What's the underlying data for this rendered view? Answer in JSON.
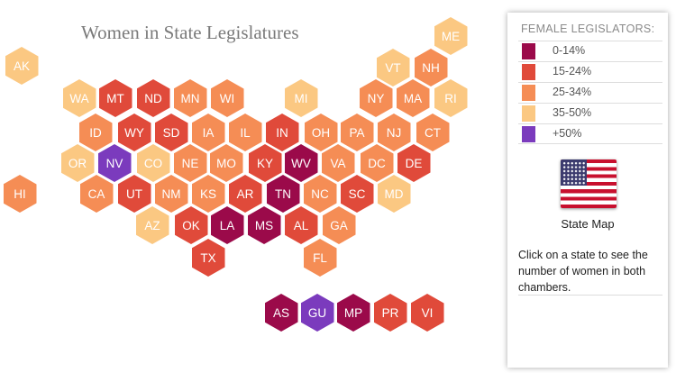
{
  "title": "Women in State Legislatures",
  "legend": {
    "title": "FEMALE LEGISLATORS:",
    "items": [
      {
        "label": "0-14%",
        "color": "#9b0a4a"
      },
      {
        "label": "15-24%",
        "color": "#e04a3a"
      },
      {
        "label": "25-34%",
        "color": "#f58d55"
      },
      {
        "label": "35-50%",
        "color": "#fbc882"
      },
      {
        "label": "+50%",
        "color": "#7b3bbd"
      }
    ]
  },
  "flag_icon": "us-flag-icon",
  "state_map_label": "State Map",
  "instructions": "Click on a state to see the number of women in both chambers.",
  "states": [
    {
      "abbr": "AK",
      "category": "35-50%"
    },
    {
      "abbr": "ME",
      "category": "35-50%"
    },
    {
      "abbr": "VT",
      "category": "35-50%"
    },
    {
      "abbr": "NH",
      "category": "25-34%"
    },
    {
      "abbr": "WA",
      "category": "35-50%"
    },
    {
      "abbr": "MT",
      "category": "15-24%"
    },
    {
      "abbr": "ND",
      "category": "15-24%"
    },
    {
      "abbr": "MN",
      "category": "25-34%"
    },
    {
      "abbr": "WI",
      "category": "25-34%"
    },
    {
      "abbr": "MI",
      "category": "35-50%"
    },
    {
      "abbr": "NY",
      "category": "25-34%"
    },
    {
      "abbr": "MA",
      "category": "25-34%"
    },
    {
      "abbr": "RI",
      "category": "35-50%"
    },
    {
      "abbr": "ID",
      "category": "25-34%"
    },
    {
      "abbr": "WY",
      "category": "15-24%"
    },
    {
      "abbr": "SD",
      "category": "15-24%"
    },
    {
      "abbr": "IA",
      "category": "25-34%"
    },
    {
      "abbr": "IL",
      "category": "25-34%"
    },
    {
      "abbr": "IN",
      "category": "15-24%"
    },
    {
      "abbr": "OH",
      "category": "25-34%"
    },
    {
      "abbr": "PA",
      "category": "25-34%"
    },
    {
      "abbr": "NJ",
      "category": "25-34%"
    },
    {
      "abbr": "CT",
      "category": "25-34%"
    },
    {
      "abbr": "OR",
      "category": "35-50%"
    },
    {
      "abbr": "NV",
      "category": "+50%"
    },
    {
      "abbr": "CO",
      "category": "35-50%"
    },
    {
      "abbr": "NE",
      "category": "25-34%"
    },
    {
      "abbr": "MO",
      "category": "25-34%"
    },
    {
      "abbr": "KY",
      "category": "15-24%"
    },
    {
      "abbr": "WV",
      "category": "0-14%"
    },
    {
      "abbr": "VA",
      "category": "25-34%"
    },
    {
      "abbr": "DC",
      "category": "25-34%"
    },
    {
      "abbr": "DE",
      "category": "15-24%"
    },
    {
      "abbr": "HI",
      "category": "25-34%"
    },
    {
      "abbr": "CA",
      "category": "25-34%"
    },
    {
      "abbr": "UT",
      "category": "15-24%"
    },
    {
      "abbr": "NM",
      "category": "25-34%"
    },
    {
      "abbr": "KS",
      "category": "25-34%"
    },
    {
      "abbr": "AR",
      "category": "15-24%"
    },
    {
      "abbr": "TN",
      "category": "0-14%"
    },
    {
      "abbr": "NC",
      "category": "25-34%"
    },
    {
      "abbr": "SC",
      "category": "15-24%"
    },
    {
      "abbr": "MD",
      "category": "35-50%"
    },
    {
      "abbr": "AZ",
      "category": "35-50%"
    },
    {
      "abbr": "OK",
      "category": "15-24%"
    },
    {
      "abbr": "LA",
      "category": "0-14%"
    },
    {
      "abbr": "MS",
      "category": "0-14%"
    },
    {
      "abbr": "AL",
      "category": "15-24%"
    },
    {
      "abbr": "GA",
      "category": "25-34%"
    },
    {
      "abbr": "TX",
      "category": "15-24%"
    },
    {
      "abbr": "FL",
      "category": "25-34%"
    },
    {
      "abbr": "AS",
      "category": "0-14%"
    },
    {
      "abbr": "GU",
      "category": "+50%"
    },
    {
      "abbr": "MP",
      "category": "0-14%"
    },
    {
      "abbr": "PR",
      "category": "15-24%"
    },
    {
      "abbr": "VI",
      "category": "15-24%"
    }
  ]
}
